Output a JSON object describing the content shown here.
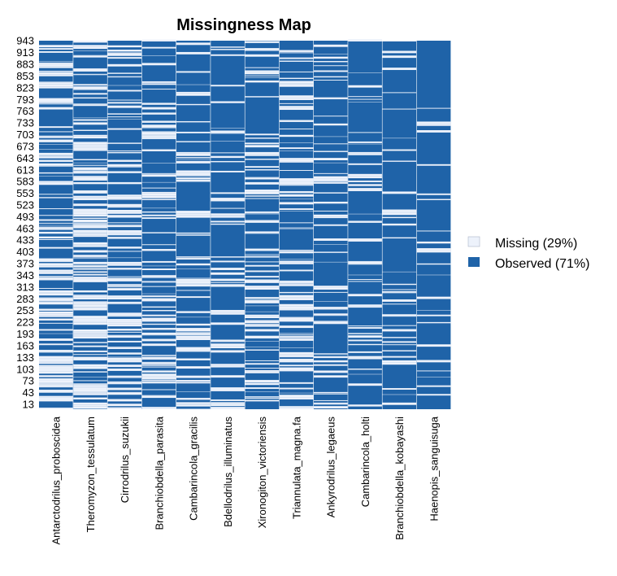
{
  "chart_data": {
    "type": "heatmap",
    "title": "Missingness Map",
    "columns": [
      "Antarctodrilus_proboscidea",
      "Theromyzon_tessulatum",
      "Cirrodrilus_suzukii",
      "Branchiobdella_parasita",
      "Cambarincola_gracilis",
      "Bdellodrilus_illuminatus",
      "Xironogiton_victoriensis",
      "Triannulata_magna.fa",
      "Ankyrodrilus_legaeus",
      "Cambarincola_holti",
      "Branchiobdella_kobayashi",
      "Haenopis_sanguisuga"
    ],
    "row_count": 943,
    "y_tick_labels": [
      "943",
      "913",
      "883",
      "853",
      "823",
      "793",
      "763",
      "733",
      "703",
      "673",
      "643",
      "613",
      "583",
      "553",
      "523",
      "493",
      "463",
      "433",
      "403",
      "373",
      "343",
      "313",
      "283",
      "253",
      "223",
      "193",
      "163",
      "133",
      "103",
      "73",
      "43",
      "13"
    ],
    "legend": [
      {
        "label": "Missing (29%)",
        "color": "#edf2fb"
      },
      {
        "label": "Observed (71%)",
        "color": "#1f63a8"
      }
    ],
    "missing_pct": 29,
    "observed_pct": 71,
    "column_missing_fraction": [
      0.45,
      0.55,
      0.35,
      0.32,
      0.28,
      0.2,
      0.3,
      0.3,
      0.2,
      0.18,
      0.15,
      0.08
    ],
    "legend_position": "right"
  }
}
